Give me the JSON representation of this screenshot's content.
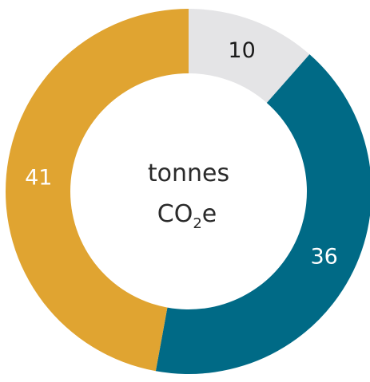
{
  "chart_data": {
    "type": "pie",
    "variant": "donut",
    "slices": [
      {
        "value": 10,
        "label": "10",
        "color": "#e4e4e6",
        "label_color": "#1a1a1a"
      },
      {
        "value": 36,
        "label": "36",
        "color": "#006a86",
        "label_color": "#ffffff"
      },
      {
        "value": 41,
        "label": "41",
        "color": "#e0a431",
        "label_color": "#ffffff"
      }
    ],
    "center_label": {
      "line1": "tonnes",
      "line2_main": "CO",
      "line2_sub": "2",
      "line2_suffix": "e"
    },
    "start_angle_deg": 0,
    "direction": "clockwise"
  }
}
